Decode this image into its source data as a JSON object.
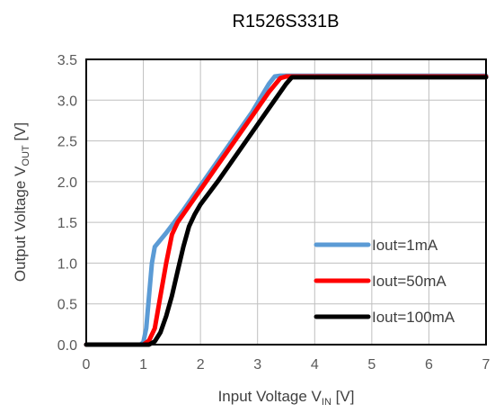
{
  "chart_data": {
    "type": "line",
    "title": "R1526S331B",
    "xlabel": {
      "main": "Input Voltage V",
      "sub": "IN",
      "unit": " [V]"
    },
    "ylabel": {
      "main": "Output Voltage V",
      "sub": "OUT",
      "unit": " [V]"
    },
    "xlim": [
      0,
      7
    ],
    "ylim": [
      0,
      3.5
    ],
    "xticks": [
      "0",
      "1",
      "2",
      "3",
      "4",
      "5",
      "6",
      "7"
    ],
    "yticks": [
      "0.0",
      "0.5",
      "1.0",
      "1.5",
      "2.0",
      "2.5",
      "3.0",
      "3.5"
    ],
    "grid": true,
    "legend_position": "bottom-right",
    "series": [
      {
        "name": "Iout=1mA",
        "color": "#5b9bd5",
        "x": [
          0,
          0.95,
          1.0,
          1.05,
          1.1,
          1.15,
          1.2,
          1.4,
          1.7,
          2.0,
          2.3,
          2.6,
          2.9,
          3.2,
          3.3,
          3.4,
          7
        ],
        "y": [
          0,
          0,
          0.03,
          0.2,
          0.6,
          1.0,
          1.2,
          1.37,
          1.65,
          1.95,
          2.25,
          2.55,
          2.85,
          3.2,
          3.29,
          3.3,
          3.3
        ]
      },
      {
        "name": "Iout=50mA",
        "color": "#ff0000",
        "x": [
          0,
          1.0,
          1.1,
          1.2,
          1.3,
          1.4,
          1.5,
          1.6,
          1.8,
          2.0,
          2.3,
          2.6,
          2.9,
          3.2,
          3.4,
          3.5,
          7
        ],
        "y": [
          0,
          0,
          0.05,
          0.2,
          0.6,
          1.0,
          1.35,
          1.5,
          1.7,
          1.9,
          2.2,
          2.5,
          2.8,
          3.1,
          3.27,
          3.29,
          3.29
        ]
      },
      {
        "name": "Iout=100mA",
        "color": "#000000",
        "x": [
          0,
          1.1,
          1.2,
          1.3,
          1.4,
          1.5,
          1.6,
          1.7,
          1.8,
          1.9,
          2.0,
          2.3,
          2.6,
          2.9,
          3.2,
          3.5,
          3.6,
          7
        ],
        "y": [
          0,
          0,
          0.04,
          0.15,
          0.35,
          0.6,
          0.9,
          1.2,
          1.45,
          1.6,
          1.72,
          2.0,
          2.3,
          2.6,
          2.9,
          3.2,
          3.28,
          3.28
        ]
      }
    ]
  }
}
